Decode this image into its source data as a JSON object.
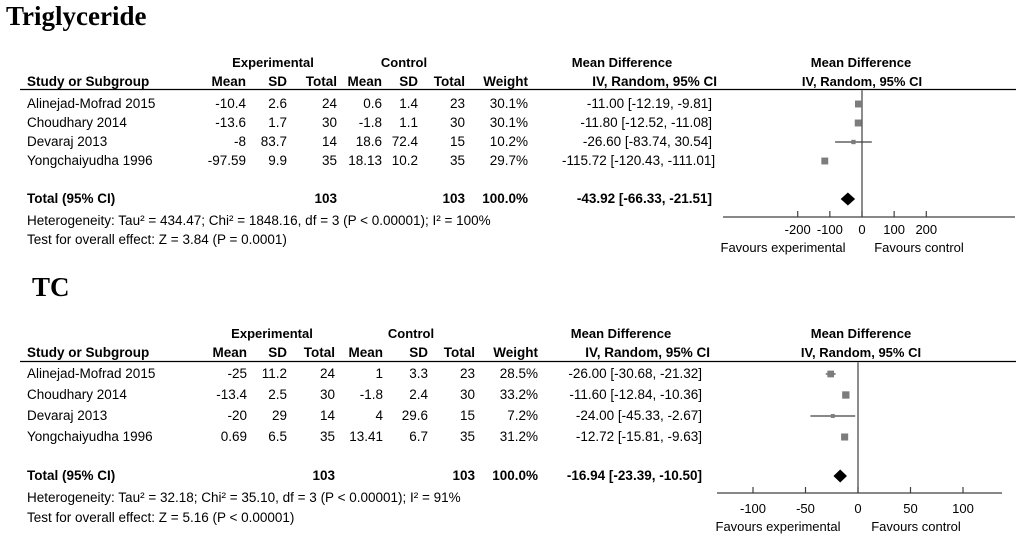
{
  "figure": {
    "background": "#ffffff",
    "text_color": "#000000",
    "square_color": "#7c7c7c",
    "diamond_color": "#000000",
    "line_color": "#404040"
  },
  "chart_data": [
    {
      "type": "forest",
      "title": "Triglyceride",
      "group_headers": {
        "experimental": "Experimental",
        "control": "Control",
        "mean_difference": "Mean Difference"
      },
      "col_headers": {
        "study": "Study or Subgroup",
        "mean": "Mean",
        "sd": "SD",
        "total": "Total",
        "weight": "Weight",
        "iv": "IV, Random, 95% CI"
      },
      "studies": [
        {
          "study": "Alinejad-Mofrad 2015",
          "exp_mean": "-10.4",
          "exp_sd": "2.6",
          "exp_total": "24",
          "ctrl_mean": "0.6",
          "ctrl_sd": "1.4",
          "ctrl_total": "23",
          "weight": "30.1%",
          "iv_label": "-11.00 [-12.19, -9.81]",
          "md": -11.0,
          "ci_low": -12.19,
          "ci_high": -9.81,
          "weight_pct": 30.1
        },
        {
          "study": "Choudhary 2014",
          "exp_mean": "-13.6",
          "exp_sd": "1.7",
          "exp_total": "30",
          "ctrl_mean": "-1.8",
          "ctrl_sd": "1.1",
          "ctrl_total": "30",
          "weight": "30.1%",
          "iv_label": "-11.80 [-12.52, -11.08]",
          "md": -11.8,
          "ci_low": -12.52,
          "ci_high": -11.08,
          "weight_pct": 30.1
        },
        {
          "study": "Devaraj 2013",
          "exp_mean": "-8",
          "exp_sd": "83.7",
          "exp_total": "14",
          "ctrl_mean": "18.6",
          "ctrl_sd": "72.4",
          "ctrl_total": "15",
          "weight": "10.2%",
          "iv_label": "-26.60 [-83.74, 30.54]",
          "md": -26.6,
          "ci_low": -83.74,
          "ci_high": 30.54,
          "weight_pct": 10.2
        },
        {
          "study": "Yongchaiyudha 1996",
          "exp_mean": "-97.59",
          "exp_sd": "9.9",
          "exp_total": "35",
          "ctrl_mean": "18.13",
          "ctrl_sd": "10.2",
          "ctrl_total": "35",
          "weight": "29.7%",
          "iv_label": "-115.72 [-120.43, -111.01]",
          "md": -115.72,
          "ci_low": -120.43,
          "ci_high": -111.01,
          "weight_pct": 29.7
        }
      ],
      "total": {
        "label": "Total (95% CI)",
        "exp_total": "103",
        "ctrl_total": "103",
        "weight": "100.0%",
        "iv_label": "-43.92 [-66.33, -21.51]",
        "md": -43.92,
        "ci_low": -66.33,
        "ci_high": -21.51
      },
      "heterogeneity": "Heterogeneity: Tau² = 434.47; Chi² = 1848.16, df = 3 (P < 0.00001); I² = 100%",
      "overall_effect": "Test for overall effect: Z = 3.84 (P = 0.0001)",
      "axis_ticks": [
        -200,
        -100,
        0,
        100,
        200
      ],
      "favours_left": "Favours experimental",
      "favours_right": "Favours control"
    },
    {
      "type": "forest",
      "title": "TC",
      "group_headers": {
        "experimental": "Experimental",
        "control": "Control",
        "mean_difference": "Mean Difference"
      },
      "col_headers": {
        "study": "Study or Subgroup",
        "mean": "Mean",
        "sd": "SD",
        "total": "Total",
        "weight": "Weight",
        "iv": "IV, Random, 95% CI"
      },
      "studies": [
        {
          "study": "Alinejad-Mofrad 2015",
          "exp_mean": "-25",
          "exp_sd": "11.2",
          "exp_total": "24",
          "ctrl_mean": "1",
          "ctrl_sd": "3.3",
          "ctrl_total": "23",
          "weight": "28.5%",
          "iv_label": "-26.00 [-30.68, -21.32]",
          "md": -26.0,
          "ci_low": -30.68,
          "ci_high": -21.32,
          "weight_pct": 28.5
        },
        {
          "study": "Choudhary 2014",
          "exp_mean": "-13.4",
          "exp_sd": "2.5",
          "exp_total": "30",
          "ctrl_mean": "-1.8",
          "ctrl_sd": "2.4",
          "ctrl_total": "30",
          "weight": "33.2%",
          "iv_label": "-11.60 [-12.84, -10.36]",
          "md": -11.6,
          "ci_low": -12.84,
          "ci_high": -10.36,
          "weight_pct": 33.2
        },
        {
          "study": "Devaraj 2013",
          "exp_mean": "-20",
          "exp_sd": "29",
          "exp_total": "14",
          "ctrl_mean": "4",
          "ctrl_sd": "29.6",
          "ctrl_total": "15",
          "weight": "7.2%",
          "iv_label": "-24.00 [-45.33, -2.67]",
          "md": -24.0,
          "ci_low": -45.33,
          "ci_high": -2.67,
          "weight_pct": 7.2
        },
        {
          "study": "Yongchaiyudha 1996",
          "exp_mean": "0.69",
          "exp_sd": "6.5",
          "exp_total": "35",
          "ctrl_mean": "13.41",
          "ctrl_sd": "6.7",
          "ctrl_total": "35",
          "weight": "31.2%",
          "iv_label": "-12.72 [-15.81, -9.63]",
          "md": -12.72,
          "ci_low": -15.81,
          "ci_high": -9.63,
          "weight_pct": 31.2
        }
      ],
      "total": {
        "label": "Total (95% CI)",
        "exp_total": "103",
        "ctrl_total": "103",
        "weight": "100.0%",
        "iv_label": "-16.94 [-23.39, -10.50]",
        "md": -16.94,
        "ci_low": -23.39,
        "ci_high": -10.5
      },
      "heterogeneity": "Heterogeneity: Tau² = 32.18; Chi² = 35.10, df = 3 (P < 0.00001); I² = 91%",
      "overall_effect": "Test for overall effect: Z = 5.16 (P < 0.00001)",
      "axis_ticks": [
        -100,
        -50,
        0,
        50,
        100
      ],
      "favours_left": "Favours experimental",
      "favours_right": "Favours control"
    }
  ]
}
